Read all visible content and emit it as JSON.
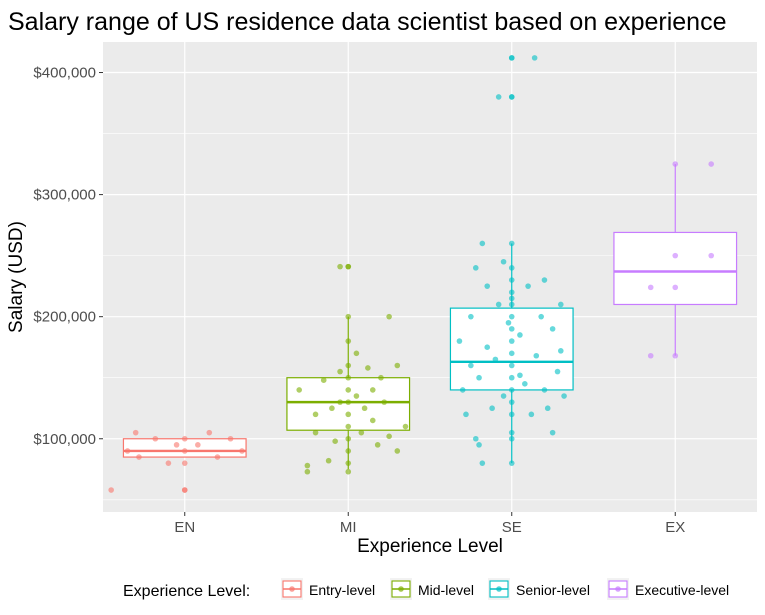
{
  "chart_data": {
    "type": "box",
    "title": "Salary range of US residence data scientist based on experience",
    "xlabel": "Experience Level",
    "ylabel": "Salary (USD)",
    "ylim": [
      40000,
      425000
    ],
    "yticks": [
      100000,
      200000,
      300000,
      400000
    ],
    "ytick_labels": [
      "$100,000",
      "$200,000",
      "$300,000",
      "$400,000"
    ],
    "grid": true,
    "legend": {
      "title": "Experience Level:",
      "position": "bottom",
      "entries": [
        "Entry-level",
        "Mid-level",
        "Senior-level",
        "Executive-level"
      ]
    },
    "categories": [
      "EN",
      "MI",
      "SE",
      "EX"
    ],
    "colors": [
      "#F8766D",
      "#7CAE00",
      "#00BFC4",
      "#C77CFF"
    ],
    "series": [
      {
        "category": "EN",
        "box": {
          "min": 85000,
          "q1": 85000,
          "median": 90000,
          "q3": 100000,
          "max": 100000
        },
        "points": [
          {
            "x": -0.35,
            "y": 90000
          },
          {
            "x": -0.28,
            "y": 85000
          },
          {
            "x": -0.18,
            "y": 100000
          },
          {
            "x": -0.1,
            "y": 80000
          },
          {
            "x": -0.05,
            "y": 95000
          },
          {
            "x": 0.0,
            "y": 100000
          },
          {
            "x": 0.0,
            "y": 80000
          },
          {
            "x": 0.0,
            "y": 90000
          },
          {
            "x": 0.0,
            "y": 58000
          },
          {
            "x": 0.0,
            "y": 58000
          },
          {
            "x": 0.08,
            "y": 95000
          },
          {
            "x": 0.15,
            "y": 105000
          },
          {
            "x": 0.2,
            "y": 85000
          },
          {
            "x": 0.28,
            "y": 100000
          },
          {
            "x": -0.3,
            "y": 105000
          },
          {
            "x": 0.35,
            "y": 90000
          },
          {
            "x": -0.45,
            "y": 58000
          }
        ]
      },
      {
        "category": "MI",
        "box": {
          "min": 75000,
          "q1": 107000,
          "median": 130000,
          "q3": 150000,
          "max": 200000
        },
        "points": [
          {
            "x": -0.25,
            "y": 78000
          },
          {
            "x": -0.25,
            "y": 73000
          },
          {
            "x": -0.2,
            "y": 105000
          },
          {
            "x": -0.2,
            "y": 120000
          },
          {
            "x": -0.15,
            "y": 148000
          },
          {
            "x": -0.1,
            "y": 125000
          },
          {
            "x": -0.08,
            "y": 98000
          },
          {
            "x": -0.05,
            "y": 130000
          },
          {
            "x": -0.05,
            "y": 155000
          },
          {
            "x": 0.0,
            "y": 200000
          },
          {
            "x": 0.0,
            "y": 180000
          },
          {
            "x": 0.0,
            "y": 160000
          },
          {
            "x": 0.0,
            "y": 150000
          },
          {
            "x": 0.0,
            "y": 140000
          },
          {
            "x": 0.0,
            "y": 130000
          },
          {
            "x": 0.0,
            "y": 120000
          },
          {
            "x": 0.0,
            "y": 110000
          },
          {
            "x": 0.0,
            "y": 100000
          },
          {
            "x": 0.0,
            "y": 90000
          },
          {
            "x": 0.0,
            "y": 80000
          },
          {
            "x": 0.0,
            "y": 73000
          },
          {
            "x": 0.0,
            "y": 241000
          },
          {
            "x": 0.0,
            "y": 241000
          },
          {
            "x": -0.05,
            "y": 241000
          },
          {
            "x": 0.05,
            "y": 170000
          },
          {
            "x": 0.05,
            "y": 135000
          },
          {
            "x": 0.08,
            "y": 105000
          },
          {
            "x": 0.12,
            "y": 158000
          },
          {
            "x": 0.15,
            "y": 115000
          },
          {
            "x": 0.15,
            "y": 140000
          },
          {
            "x": 0.18,
            "y": 95000
          },
          {
            "x": 0.2,
            "y": 150000
          },
          {
            "x": 0.22,
            "y": 130000
          },
          {
            "x": 0.25,
            "y": 200000
          },
          {
            "x": 0.25,
            "y": 102000
          },
          {
            "x": 0.3,
            "y": 160000
          },
          {
            "x": 0.3,
            "y": 90000
          },
          {
            "x": 0.35,
            "y": 110000
          },
          {
            "x": -0.3,
            "y": 140000
          },
          {
            "x": -0.12,
            "y": 82000
          },
          {
            "x": 0.1,
            "y": 125000
          }
        ]
      },
      {
        "category": "SE",
        "box": {
          "min": 80000,
          "q1": 140000,
          "median": 163000,
          "q3": 207000,
          "max": 260000
        },
        "points": [
          {
            "x": 0.0,
            "y": 412000
          },
          {
            "x": 0.0,
            "y": 412000
          },
          {
            "x": 0.14,
            "y": 412000
          },
          {
            "x": -0.08,
            "y": 380000
          },
          {
            "x": 0.0,
            "y": 380000
          },
          {
            "x": 0.0,
            "y": 380000
          },
          {
            "x": 0.0,
            "y": 260000
          },
          {
            "x": -0.18,
            "y": 260000
          },
          {
            "x": -0.22,
            "y": 240000
          },
          {
            "x": -0.05,
            "y": 245000
          },
          {
            "x": 0.0,
            "y": 240000
          },
          {
            "x": 0.0,
            "y": 230000
          },
          {
            "x": 0.0,
            "y": 220000
          },
          {
            "x": 0.0,
            "y": 215000
          },
          {
            "x": 0.0,
            "y": 210000
          },
          {
            "x": 0.0,
            "y": 200000
          },
          {
            "x": 0.0,
            "y": 190000
          },
          {
            "x": 0.0,
            "y": 180000
          },
          {
            "x": 0.0,
            "y": 170000
          },
          {
            "x": 0.0,
            "y": 160000
          },
          {
            "x": 0.0,
            "y": 150000
          },
          {
            "x": 0.0,
            "y": 140000
          },
          {
            "x": 0.0,
            "y": 130000
          },
          {
            "x": 0.0,
            "y": 120000
          },
          {
            "x": 0.0,
            "y": 100000
          },
          {
            "x": 0.0,
            "y": 80000
          },
          {
            "x": 0.0,
            "y": 105000
          },
          {
            "x": -0.3,
            "y": 140000
          },
          {
            "x": -0.28,
            "y": 120000
          },
          {
            "x": -0.25,
            "y": 200000
          },
          {
            "x": -0.22,
            "y": 100000
          },
          {
            "x": -0.2,
            "y": 150000
          },
          {
            "x": -0.18,
            "y": 80000
          },
          {
            "x": -0.15,
            "y": 175000
          },
          {
            "x": -0.12,
            "y": 125000
          },
          {
            "x": -0.1,
            "y": 165000
          },
          {
            "x": -0.08,
            "y": 210000
          },
          {
            "x": -0.05,
            "y": 135000
          },
          {
            "x": 0.05,
            "y": 185000
          },
          {
            "x": 0.08,
            "y": 145000
          },
          {
            "x": 0.1,
            "y": 225000
          },
          {
            "x": 0.12,
            "y": 120000
          },
          {
            "x": 0.15,
            "y": 168000
          },
          {
            "x": 0.18,
            "y": 200000
          },
          {
            "x": 0.2,
            "y": 140000
          },
          {
            "x": 0.2,
            "y": 230000
          },
          {
            "x": 0.22,
            "y": 125000
          },
          {
            "x": 0.25,
            "y": 190000
          },
          {
            "x": 0.28,
            "y": 155000
          },
          {
            "x": 0.3,
            "y": 210000
          },
          {
            "x": 0.32,
            "y": 135000
          },
          {
            "x": -0.32,
            "y": 180000
          },
          {
            "x": -0.02,
            "y": 195000
          },
          {
            "x": 0.05,
            "y": 152000
          },
          {
            "x": -0.15,
            "y": 225000
          },
          {
            "x": 0.25,
            "y": 105000
          },
          {
            "x": -0.25,
            "y": 160000
          },
          {
            "x": 0.3,
            "y": 172000
          },
          {
            "x": -0.2,
            "y": 95000
          }
        ]
      },
      {
        "category": "EX",
        "box": {
          "min": 168000,
          "q1": 210000,
          "median": 237000,
          "q3": 269000,
          "max": 325000
        },
        "points": [
          {
            "x": 0.0,
            "y": 325000
          },
          {
            "x": 0.22,
            "y": 325000
          },
          {
            "x": 0.0,
            "y": 250000
          },
          {
            "x": 0.22,
            "y": 250000
          },
          {
            "x": -0.15,
            "y": 224000
          },
          {
            "x": 0.0,
            "y": 224000
          },
          {
            "x": -0.15,
            "y": 168000
          },
          {
            "x": 0.0,
            "y": 168000
          }
        ]
      }
    ]
  }
}
